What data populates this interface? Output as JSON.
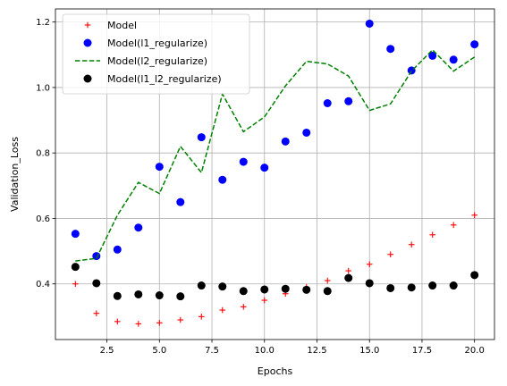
{
  "chart_data": {
    "type": "scatter",
    "title": "",
    "xlabel": "Epochs",
    "ylabel": "Validation_Loss",
    "xlim": [
      0.05,
      20.95
    ],
    "ylim": [
      0.23,
      1.24
    ],
    "x_ticks": [
      2.5,
      5.0,
      7.5,
      10.0,
      12.5,
      15.0,
      17.5,
      20.0
    ],
    "x_tick_labels": [
      "2.5",
      "5.0",
      "7.5",
      "10.0",
      "12.5",
      "15.0",
      "17.5",
      "20.0"
    ],
    "y_ticks": [
      0.4,
      0.6,
      0.8,
      1.0,
      1.2
    ],
    "y_tick_labels": [
      "0.4",
      "0.6",
      "0.8",
      "1.0",
      "1.2"
    ],
    "grid": true,
    "legend_position": "top-left",
    "x": [
      1,
      2,
      3,
      4,
      5,
      6,
      7,
      8,
      9,
      10,
      11,
      12,
      13,
      14,
      15,
      16,
      17,
      18,
      19,
      20
    ],
    "series": [
      {
        "name": "Model",
        "marker": "plus",
        "color": "#ff0000",
        "values": [
          0.4,
          0.31,
          0.285,
          0.278,
          0.281,
          0.29,
          0.3,
          0.32,
          0.33,
          0.35,
          0.37,
          0.39,
          0.41,
          0.44,
          0.46,
          0.49,
          0.52,
          0.55,
          0.58,
          0.61
        ]
      },
      {
        "name": "Model(l1_regularize)",
        "marker": "circle",
        "color": "#0000ff",
        "values": [
          0.553,
          0.485,
          0.505,
          0.572,
          0.758,
          0.65,
          0.848,
          0.718,
          0.773,
          0.755,
          0.835,
          0.862,
          0.952,
          0.958,
          1.195,
          1.118,
          1.052,
          1.097,
          1.085,
          1.132
        ]
      },
      {
        "name": "Model(l2_regularize)",
        "marker": "dashed-line",
        "color": "#008000",
        "values": [
          0.47,
          0.478,
          0.61,
          0.71,
          0.676,
          0.82,
          0.74,
          0.98,
          0.865,
          0.91,
          1.005,
          1.08,
          1.072,
          1.035,
          0.93,
          0.95,
          1.05,
          1.115,
          1.05,
          1.093
        ]
      },
      {
        "name": "Model(l1_l2_regularize)",
        "marker": "circle",
        "color": "#000000",
        "values": [
          0.452,
          0.402,
          0.363,
          0.368,
          0.365,
          0.362,
          0.395,
          0.392,
          0.378,
          0.383,
          0.385,
          0.382,
          0.378,
          0.418,
          0.402,
          0.387,
          0.389,
          0.395,
          0.395,
          0.427
        ]
      }
    ]
  }
}
